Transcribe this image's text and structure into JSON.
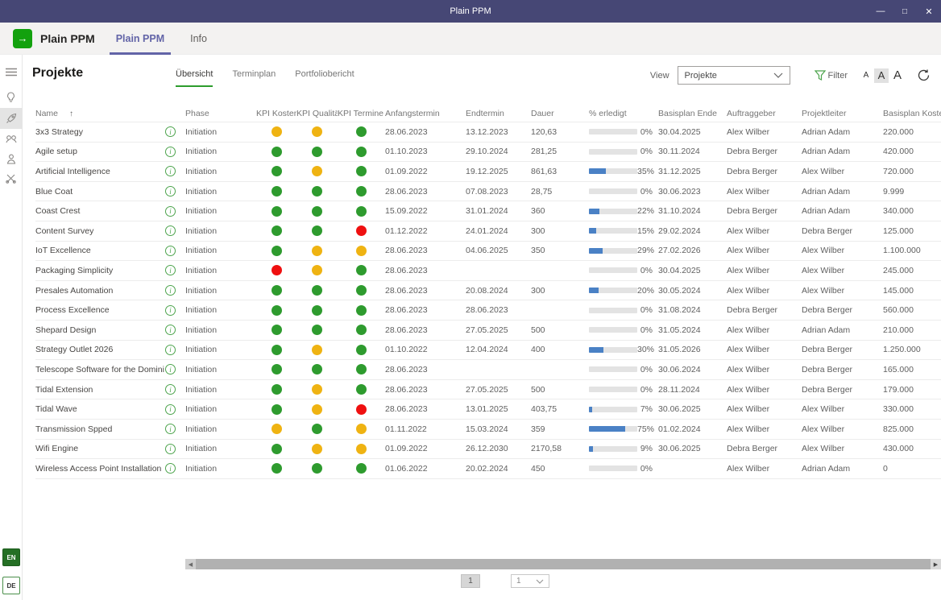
{
  "window": {
    "title": "Plain PPM"
  },
  "app_header": {
    "app_name": "Plain PPM",
    "tabs": [
      {
        "label": "Plain PPM",
        "active": true
      },
      {
        "label": "Info",
        "active": false
      }
    ],
    "icons": [
      "refresh-icon",
      "globe-icon",
      "shield-icon"
    ]
  },
  "sidebar": {
    "icons": [
      "hamburger-menu-icon",
      "lightbulb-icon",
      "projects-icon",
      "portfolio-icon",
      "person-icon",
      "scissors-icon"
    ],
    "active_icon": "projects-icon",
    "language_buttons": [
      {
        "label": "EN",
        "active": true
      },
      {
        "label": "DE",
        "active": false
      }
    ]
  },
  "page": {
    "title": "Projekte",
    "tabs": [
      {
        "label": "Übersicht",
        "active": true
      },
      {
        "label": "Terminplan",
        "active": false
      },
      {
        "label": "Portfoliobericht",
        "active": false
      }
    ],
    "view": {
      "label": "View",
      "selected": "Projekte"
    },
    "filter_label": "Filter",
    "font_sizes": [
      "A",
      "A",
      "A"
    ],
    "font_size_selected_index": 1
  },
  "table": {
    "columns": [
      "Name",
      "Phase",
      "KPI Kosten",
      "KPI Qualität",
      "KPI Termine",
      "Anfangstermin",
      "Endtermin",
      "Dauer",
      "% erledigt",
      "Basisplan Ende",
      "Auftraggeber",
      "Projektleiter",
      "Basisplan Kosten (C"
    ],
    "sort": {
      "column": "Name",
      "direction": "asc",
      "arrow": "↑"
    },
    "rows": [
      {
        "name": "3x3 Strategy",
        "phase": "Initiation",
        "kpi_kosten": "yellow",
        "kpi_qualitaet": "yellow",
        "kpi_termine": "green",
        "anfangstermin": "28.06.2023",
        "endtermin": "13.12.2023",
        "dauer": "120,63",
        "erledigt_pct": 0,
        "erledigt": "0%",
        "basisplan_ende": "30.04.2025",
        "auftraggeber": "Alex Wilber",
        "projektleiter": "Adrian Adam",
        "basisplan_kosten": "220.000"
      },
      {
        "name": "Agile setup",
        "phase": "Initiation",
        "kpi_kosten": "green",
        "kpi_qualitaet": "green",
        "kpi_termine": "green",
        "anfangstermin": "01.10.2023",
        "endtermin": "29.10.2024",
        "dauer": "281,25",
        "erledigt_pct": 0,
        "erledigt": "0%",
        "basisplan_ende": "30.11.2024",
        "auftraggeber": "Debra Berger",
        "projektleiter": "Adrian Adam",
        "basisplan_kosten": "420.000"
      },
      {
        "name": "Artificial Intelligence",
        "phase": "Initiation",
        "kpi_kosten": "green",
        "kpi_qualitaet": "yellow",
        "kpi_termine": "green",
        "anfangstermin": "01.09.2022",
        "endtermin": "19.12.2025",
        "dauer": "861,63",
        "erledigt_pct": 35,
        "erledigt": "35%",
        "basisplan_ende": "31.12.2025",
        "auftraggeber": "Debra Berger",
        "projektleiter": "Alex Wilber",
        "basisplan_kosten": "720.000"
      },
      {
        "name": "Blue Coat",
        "phase": "Initiation",
        "kpi_kosten": "green",
        "kpi_qualitaet": "green",
        "kpi_termine": "green",
        "anfangstermin": "28.06.2023",
        "endtermin": "07.08.2023",
        "dauer": "28,75",
        "erledigt_pct": 0,
        "erledigt": "0%",
        "basisplan_ende": "30.06.2023",
        "auftraggeber": "Alex Wilber",
        "projektleiter": "Adrian Adam",
        "basisplan_kosten": "9.999"
      },
      {
        "name": "Coast Crest",
        "phase": "Initiation",
        "kpi_kosten": "green",
        "kpi_qualitaet": "green",
        "kpi_termine": "green",
        "anfangstermin": "15.09.2022",
        "endtermin": "31.01.2024",
        "dauer": "360",
        "erledigt_pct": 22,
        "erledigt": "22%",
        "basisplan_ende": "31.10.2024",
        "auftraggeber": "Debra Berger",
        "projektleiter": "Adrian Adam",
        "basisplan_kosten": "340.000"
      },
      {
        "name": "Content Survey",
        "phase": "Initiation",
        "kpi_kosten": "green",
        "kpi_qualitaet": "green",
        "kpi_termine": "red",
        "anfangstermin": "01.12.2022",
        "endtermin": "24.01.2024",
        "dauer": "300",
        "erledigt_pct": 15,
        "erledigt": "15%",
        "basisplan_ende": "29.02.2024",
        "auftraggeber": "Alex Wilber",
        "projektleiter": "Debra Berger",
        "basisplan_kosten": "125.000"
      },
      {
        "name": "IoT Excellence",
        "phase": "Initiation",
        "kpi_kosten": "green",
        "kpi_qualitaet": "yellow",
        "kpi_termine": "yellow",
        "anfangstermin": "28.06.2023",
        "endtermin": "04.06.2025",
        "dauer": "350",
        "erledigt_pct": 29,
        "erledigt": "29%",
        "basisplan_ende": "27.02.2026",
        "auftraggeber": "Alex Wilber",
        "projektleiter": "Alex Wilber",
        "basisplan_kosten": "1.100.000"
      },
      {
        "name": "Packaging Simplicity",
        "phase": "Initiation",
        "kpi_kosten": "red",
        "kpi_qualitaet": "yellow",
        "kpi_termine": "green",
        "anfangstermin": "28.06.2023",
        "endtermin": "",
        "dauer": "",
        "erledigt_pct": 0,
        "erledigt": "0%",
        "basisplan_ende": "30.04.2025",
        "auftraggeber": "Alex Wilber",
        "projektleiter": "Alex Wilber",
        "basisplan_kosten": "245.000"
      },
      {
        "name": "Presales Automation",
        "phase": "Initiation",
        "kpi_kosten": "green",
        "kpi_qualitaet": "green",
        "kpi_termine": "green",
        "anfangstermin": "28.06.2023",
        "endtermin": "20.08.2024",
        "dauer": "300",
        "erledigt_pct": 20,
        "erledigt": "20%",
        "basisplan_ende": "30.05.2024",
        "auftraggeber": "Alex Wilber",
        "projektleiter": "Alex Wilber",
        "basisplan_kosten": "145.000"
      },
      {
        "name": "Process Excellence",
        "phase": "Initiation",
        "kpi_kosten": "green",
        "kpi_qualitaet": "green",
        "kpi_termine": "green",
        "anfangstermin": "28.06.2023",
        "endtermin": "28.06.2023",
        "dauer": "",
        "erledigt_pct": 0,
        "erledigt": "0%",
        "basisplan_ende": "31.08.2024",
        "auftraggeber": "Debra Berger",
        "projektleiter": "Debra Berger",
        "basisplan_kosten": "560.000"
      },
      {
        "name": "Shepard Design",
        "phase": "Initiation",
        "kpi_kosten": "green",
        "kpi_qualitaet": "green",
        "kpi_termine": "green",
        "anfangstermin": "28.06.2023",
        "endtermin": "27.05.2025",
        "dauer": "500",
        "erledigt_pct": 0,
        "erledigt": "0%",
        "basisplan_ende": "31.05.2024",
        "auftraggeber": "Alex Wilber",
        "projektleiter": "Adrian Adam",
        "basisplan_kosten": "210.000"
      },
      {
        "name": "Strategy Outlet 2026",
        "phase": "Initiation",
        "kpi_kosten": "green",
        "kpi_qualitaet": "yellow",
        "kpi_termine": "green",
        "anfangstermin": "01.10.2022",
        "endtermin": "12.04.2024",
        "dauer": "400",
        "erledigt_pct": 30,
        "erledigt": "30%",
        "basisplan_ende": "31.05.2026",
        "auftraggeber": "Alex Wilber",
        "projektleiter": "Debra Berger",
        "basisplan_kosten": "1.250.000"
      },
      {
        "name": "Telescope Software for the Dominion",
        "phase": "Initiation",
        "kpi_kosten": "green",
        "kpi_qualitaet": "green",
        "kpi_termine": "green",
        "anfangstermin": "28.06.2023",
        "endtermin": "",
        "dauer": "",
        "erledigt_pct": 0,
        "erledigt": "0%",
        "basisplan_ende": "30.06.2024",
        "auftraggeber": "Alex Wilber",
        "projektleiter": "Debra Berger",
        "basisplan_kosten": "165.000"
      },
      {
        "name": "Tidal Extension",
        "phase": "Initiation",
        "kpi_kosten": "green",
        "kpi_qualitaet": "yellow",
        "kpi_termine": "green",
        "anfangstermin": "28.06.2023",
        "endtermin": "27.05.2025",
        "dauer": "500",
        "erledigt_pct": 0,
        "erledigt": "0%",
        "basisplan_ende": "28.11.2024",
        "auftraggeber": "Alex Wilber",
        "projektleiter": "Debra Berger",
        "basisplan_kosten": "179.000"
      },
      {
        "name": "Tidal Wave",
        "phase": "Initiation",
        "kpi_kosten": "green",
        "kpi_qualitaet": "yellow",
        "kpi_termine": "red",
        "anfangstermin": "28.06.2023",
        "endtermin": "13.01.2025",
        "dauer": "403,75",
        "erledigt_pct": 7,
        "erledigt": "7%",
        "basisplan_ende": "30.06.2025",
        "auftraggeber": "Alex Wilber",
        "projektleiter": "Alex Wilber",
        "basisplan_kosten": "330.000"
      },
      {
        "name": "Transmission Spped",
        "phase": "Initiation",
        "kpi_kosten": "yellow",
        "kpi_qualitaet": "green",
        "kpi_termine": "yellow",
        "anfangstermin": "01.11.2022",
        "endtermin": "15.03.2024",
        "dauer": "359",
        "erledigt_pct": 75,
        "erledigt": "75%",
        "basisplan_ende": "01.02.2024",
        "auftraggeber": "Alex Wilber",
        "projektleiter": "Alex Wilber",
        "basisplan_kosten": "825.000"
      },
      {
        "name": "Wifi Engine",
        "phase": "Initiation",
        "kpi_kosten": "green",
        "kpi_qualitaet": "yellow",
        "kpi_termine": "yellow",
        "anfangstermin": "01.09.2022",
        "endtermin": "26.12.2030",
        "dauer": "2170,58",
        "erledigt_pct": 9,
        "erledigt": "9%",
        "basisplan_ende": "30.06.2025",
        "auftraggeber": "Debra Berger",
        "projektleiter": "Alex Wilber",
        "basisplan_kosten": "430.000"
      },
      {
        "name": "Wireless Access Point Installation",
        "phase": "Initiation",
        "kpi_kosten": "green",
        "kpi_qualitaet": "green",
        "kpi_termine": "green",
        "anfangstermin": "01.06.2022",
        "endtermin": "20.02.2024",
        "dauer": "450",
        "erledigt_pct": 0,
        "erledigt": "0%",
        "basisplan_ende": "",
        "auftraggeber": "Alex Wilber",
        "projektleiter": "Adrian Adam",
        "basisplan_kosten": "0"
      }
    ]
  },
  "pagination": {
    "current_page": "1",
    "page_selector_value": "1"
  },
  "colors": {
    "titlebar": "#464775",
    "brand_purple": "#6264a7",
    "app_icon_green": "#13a10e",
    "tab_underline_green": "#2d9d2d",
    "kpi": {
      "green": "#2e9b2e",
      "yellow": "#efb312",
      "red": "#ef1010"
    },
    "progress_fill": "#4a81c5"
  }
}
